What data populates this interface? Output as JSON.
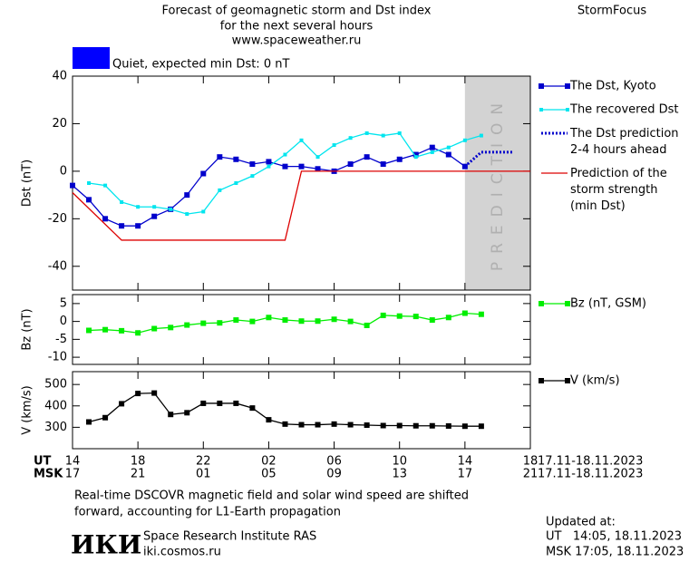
{
  "header": {
    "title_lines": [
      "Forecast of geomagnetic storm and Dst index",
      "for the next several hours",
      "www.spaceweather.ru"
    ],
    "brand": "StormFocus",
    "quiet_label": "Quiet, expected min Dst: 0 nT",
    "quiet_color": "#0000ff"
  },
  "chart_data": [
    {
      "type": "line",
      "ylabel": "Dst (nT)",
      "xlim": [
        0,
        28
      ],
      "ylim": [
        -50,
        40
      ],
      "yticks": [
        40,
        20,
        0,
        -20,
        -40
      ],
      "shade": {
        "x": [
          24,
          28
        ],
        "label": "PREDICTION",
        "color": "#d3d3d3"
      },
      "series": [
        {
          "name": "The Dst, Kyoto",
          "color": "#0000cc",
          "marker": "square",
          "x": [
            0,
            1,
            2,
            3,
            4,
            5,
            6,
            7,
            8,
            9,
            10,
            11,
            12,
            13,
            14,
            15,
            16,
            17,
            18,
            19,
            20,
            21,
            22,
            23,
            24
          ],
          "values": [
            -6,
            -12,
            -20,
            -23,
            -23,
            -19,
            -16,
            -10,
            -1,
            6,
            5,
            3,
            4,
            2,
            2,
            1,
            0,
            3,
            6,
            3,
            5,
            7,
            10,
            7,
            2
          ]
        },
        {
          "name": "The recovered Dst",
          "color": "#00e5ee",
          "marker": "small",
          "x": [
            1,
            2,
            3,
            4,
            5,
            6,
            7,
            8,
            9,
            10,
            11,
            12,
            13,
            14,
            15,
            16,
            17,
            18,
            19,
            20,
            21,
            22,
            23,
            24,
            25
          ],
          "values": [
            -5,
            -6,
            -13,
            -15,
            -15,
            -16,
            -18,
            -17,
            -8,
            -5,
            -2,
            2,
            7,
            13,
            6,
            11,
            14,
            16,
            15,
            16,
            6,
            8,
            10,
            13,
            15
          ]
        },
        {
          "name": "The Dst prediction\n2-4 hours ahead",
          "color": "#0000cc",
          "marker": "dotted",
          "x": [
            24,
            25,
            27
          ],
          "values": [
            2,
            8,
            8
          ]
        },
        {
          "name": "Prediction of the\nstorm strength\n(min Dst)",
          "color": "#dd0000",
          "marker": "none",
          "x": [
            0,
            3,
            13,
            14,
            28
          ],
          "values": [
            -9,
            -29,
            -29,
            0,
            0
          ]
        }
      ]
    },
    {
      "type": "line",
      "ylabel": "Bz (nT)",
      "xlim": [
        0,
        28
      ],
      "ylim": [
        -12,
        7.5
      ],
      "yticks": [
        5,
        0,
        -5,
        -10
      ],
      "series": [
        {
          "name": "Bz (nT, GSM)",
          "color": "#00ee00",
          "marker": "square",
          "x": [
            1,
            2,
            3,
            4,
            5,
            6,
            7,
            8,
            9,
            10,
            11,
            12,
            13,
            14,
            15,
            16,
            17,
            18,
            19,
            20,
            21,
            22,
            23,
            24,
            25
          ],
          "values": [
            -2.5,
            -2.3,
            -2.6,
            -3.2,
            -2,
            -1.7,
            -1,
            -0.5,
            -0.4,
            0.4,
            0,
            1.1,
            0.4,
            0.1,
            0.1,
            0.6,
            0,
            -1.1,
            1.7,
            1.5,
            1.4,
            0.4,
            1.1,
            2.3,
            2
          ]
        }
      ]
    },
    {
      "type": "line",
      "ylabel": "V (km/s)",
      "xlim": [
        0,
        28
      ],
      "ylim": [
        200,
        560
      ],
      "yticks": [
        500,
        400,
        300
      ],
      "xaxis_labels": [
        "UT",
        "MSK"
      ],
      "date_range": [
        "17.11-18.11.2023",
        "17.11-18.11.2023"
      ],
      "xticks": [
        {
          "value": 0,
          "label": "14"
        },
        {
          "value": 4,
          "label": "18"
        },
        {
          "value": 8,
          "label": "22"
        },
        {
          "value": 12,
          "label": "02"
        },
        {
          "value": 16,
          "label": "06"
        },
        {
          "value": 20,
          "label": "10"
        },
        {
          "value": 24,
          "label": "14"
        },
        {
          "value": 28,
          "label": "18"
        }
      ],
      "xticks_msk": [
        {
          "value": 0,
          "label": "17"
        },
        {
          "value": 4,
          "label": "21"
        },
        {
          "value": 8,
          "label": "01"
        },
        {
          "value": 12,
          "label": "05"
        },
        {
          "value": 16,
          "label": "09"
        },
        {
          "value": 20,
          "label": "13"
        },
        {
          "value": 24,
          "label": "17"
        },
        {
          "value": 28,
          "label": "21"
        }
      ],
      "series": [
        {
          "name": "V (km/s)",
          "color": "#000000",
          "marker": "square",
          "x": [
            1,
            2,
            3,
            4,
            5,
            6,
            7,
            8,
            9,
            10,
            11,
            12,
            13,
            14,
            15,
            16,
            17,
            18,
            19,
            20,
            21,
            22,
            23,
            24,
            25
          ],
          "values": [
            325,
            345,
            410,
            458,
            460,
            360,
            368,
            412,
            412,
            412,
            390,
            335,
            315,
            312,
            312,
            315,
            312,
            310,
            308,
            308,
            307,
            307,
            306,
            305,
            305
          ]
        }
      ]
    }
  ],
  "footer": {
    "note_lines": [
      "Real-time DSCOVR magnetic field and solar wind speed are shifted",
      "forward, accounting for L1-Earth propagation"
    ],
    "logo": "ИКИ",
    "institute": "Space Research Institute RAS",
    "url": "iki.cosmos.ru",
    "updated_title": "Updated at:",
    "updated_lines": [
      "UT   14:05, 18.11.2023",
      "MSK 17:05, 18.11.2023"
    ]
  }
}
